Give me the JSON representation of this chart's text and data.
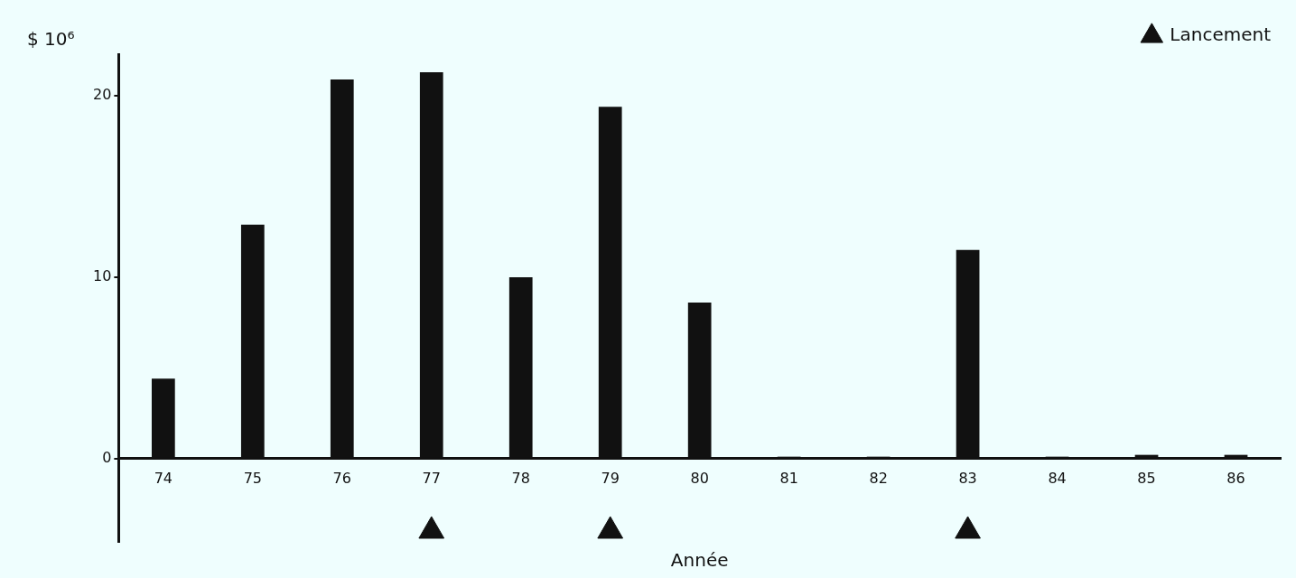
{
  "chart_data": {
    "type": "bar",
    "xlabel": "Année",
    "ylabel": "$ 10⁶",
    "categories": [
      "74",
      "75",
      "76",
      "77",
      "78",
      "79",
      "80",
      "81",
      "82",
      "83",
      "84",
      "85",
      "86"
    ],
    "series": [
      {
        "color": "#111111",
        "values": [
          4.4,
          12.9,
          20.9,
          21.3,
          10.0,
          19.4,
          8.6,
          0.1,
          0.1,
          11.5,
          0.1,
          0.2,
          0.2
        ]
      },
      {
        "type": "scatter",
        "name": "Lancement",
        "color": "#111111",
        "x": [
          "77",
          "79",
          "83"
        ],
        "values": [
          -4,
          -4,
          -4
        ]
      }
    ],
    "marker": "triangle",
    "legend": "top right",
    "ylim": [
      -4.6,
      22.3
    ],
    "yticks": [
      0,
      10,
      20
    ],
    "grid": false
  }
}
